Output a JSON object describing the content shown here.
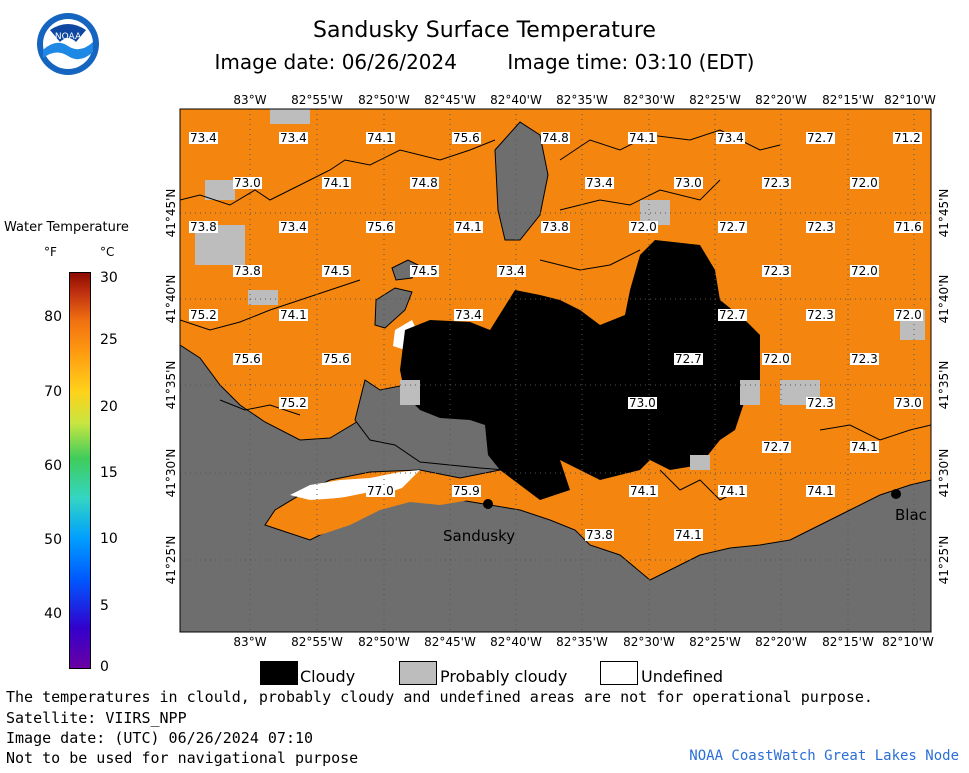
{
  "header": {
    "title": "Sandusky Surface Temperature",
    "image_date": "Image date: 06/26/2024",
    "image_time": "Image time: 03:10 (EDT)",
    "logo_text": "NOAA"
  },
  "scale": {
    "title": "Water Temperature",
    "unit_f": "°F",
    "unit_c": "°C",
    "fahrenheit_ticks": [
      "80",
      "70",
      "60",
      "50",
      "40"
    ],
    "celsius_ticks": [
      "30",
      "25",
      "20",
      "15",
      "10",
      "5",
      "0"
    ]
  },
  "axes": {
    "longitude": [
      "83°W",
      "82°55'W",
      "82°50'W",
      "82°45'W",
      "82°40'W",
      "82°35'W",
      "82°30'W",
      "82°25'W",
      "82°20'W",
      "82°15'W",
      "82°10'W"
    ],
    "latitude": [
      "41°45'N",
      "41°40'N",
      "41°35'N",
      "41°30'N",
      "41°25'N"
    ]
  },
  "places": {
    "sandusky": "Sandusky",
    "blac": "Blac"
  },
  "temperatures": [
    "73.4",
    "73.4",
    "74.1",
    "75.6",
    "74.8",
    "74.1",
    "73.4",
    "72.7",
    "71.2",
    "73.0",
    "74.1",
    "74.8",
    "73.4",
    "73.0",
    "72.3",
    "72.0",
    "73.8",
    "73.4",
    "75.6",
    "74.1",
    "73.8",
    "72.0",
    "72.7",
    "72.3",
    "71.6",
    "73.8",
    "74.5",
    "74.5",
    "73.4",
    "72.3",
    "72.0",
    "75.2",
    "74.1",
    "73.4",
    "72.7",
    "72.3",
    "72.0",
    "75.6",
    "75.6",
    "72.7",
    "72.0",
    "72.3",
    "75.2",
    "73.0",
    "72.3",
    "73.0",
    "72.7",
    "74.1",
    "77.0",
    "75.9",
    "74.1",
    "74.1",
    "74.1",
    "73.8",
    "74.1"
  ],
  "legend": {
    "cloudy": "Cloudy",
    "probably_cloudy": "Probably cloudy",
    "undefined": "Undefined",
    "colors": {
      "cloudy": "#000000",
      "probably_cloudy": "#bdbdbd",
      "undefined": "#ffffff",
      "water": "#f4860f",
      "land": "#6e6e6e"
    }
  },
  "footer": {
    "note": "The temperatures in clould, probably cloudy and undefined areas are not for operational purpose.",
    "satellite": "Satellite: VIIRS_NPP",
    "utc_date": "Image date: (UTC) 06/26/2024  07:10",
    "nav_warning": "Not to be used for navigational purpose",
    "credit": "NOAA CoastWatch Great Lakes Node"
  }
}
